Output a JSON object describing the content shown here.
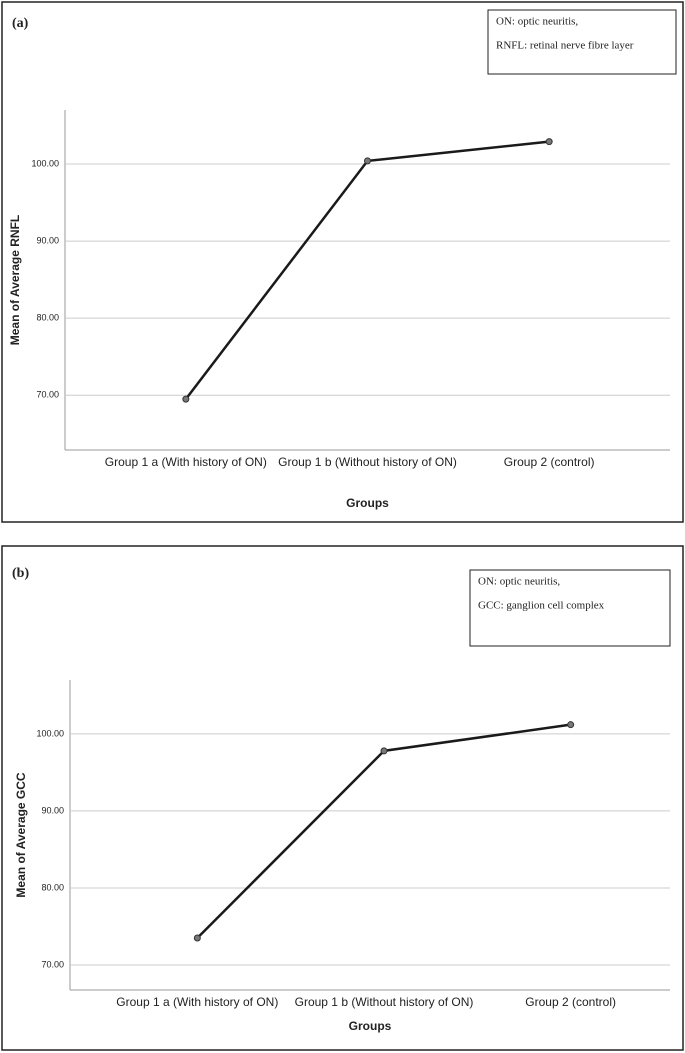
{
  "chart_data": [
    {
      "type": "line",
      "panel_label": "(a)",
      "notes": [
        "ON: optic neuritis,",
        "RNFL: retinal nerve fibre layer"
      ],
      "x_label": "Groups",
      "y_label": "Mean of Average RNFL",
      "categories": [
        "Group 1 a (With history of ON)",
        "Group 1 b (Without history of ON)",
        "Group 2 (control)"
      ],
      "values": [
        69.5,
        100.4,
        102.9
      ],
      "color": "#1a1a1a",
      "ylim": [
        62.9,
        107
      ],
      "yticks": [
        {
          "value": 70,
          "label": "70.00"
        },
        {
          "value": 80,
          "label": "80.00"
        },
        {
          "value": 90,
          "label": "90.00"
        },
        {
          "value": 100,
          "label": "100.00"
        }
      ],
      "grid": true
    },
    {
      "type": "line",
      "panel_label": "(b)",
      "notes": [
        "ON: optic neuritis,",
        "GCC: ganglion cell complex"
      ],
      "x_label": "Groups",
      "y_label": "Mean of Average GCC",
      "categories": [
        "Group 1 a (With history of ON)",
        "Group 1 b (Without history of ON)",
        "Group 2 (control)"
      ],
      "values": [
        73.5,
        97.8,
        101.2
      ],
      "color": "#1a1a1a",
      "ylim": [
        66.75,
        107
      ],
      "yticks": [
        {
          "value": 70,
          "label": "70.00"
        },
        {
          "value": 80,
          "label": "80.00"
        },
        {
          "value": 90,
          "label": "90.00"
        },
        {
          "value": 100,
          "label": "100.00"
        }
      ],
      "grid": true
    }
  ]
}
